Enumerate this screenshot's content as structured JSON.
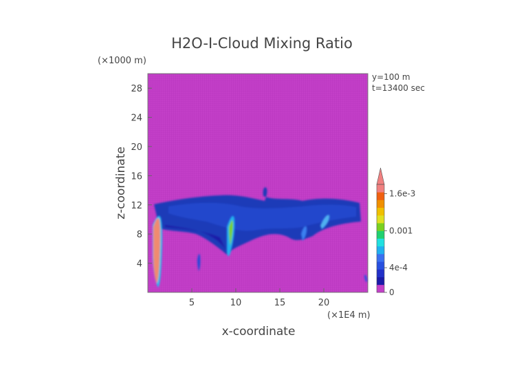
{
  "chart_data": {
    "type": "heatmap",
    "title": "H2O-I-Cloud Mixing Ratio",
    "xlabel": "x-coordinate",
    "ylabel": "z-coordinate",
    "x_unit": "(×1E4 m)",
    "y_unit": "(×1000 m)",
    "xlim": [
      0,
      25
    ],
    "ylim": [
      0,
      30
    ],
    "x_ticks": [
      5,
      10,
      15,
      20
    ],
    "y_ticks": [
      4,
      8,
      12,
      16,
      20,
      24,
      28
    ],
    "annotations": [
      "y=100 m",
      "t=13400 sec"
    ],
    "colorbar": {
      "tick_values": [
        0,
        0.0004,
        0.001,
        0.0016
      ],
      "tick_labels": [
        "0",
        "4e-4",
        "0.001",
        "1.6e-3"
      ],
      "colors": [
        "#c33fc8",
        "#1a1aa8",
        "#2230c8",
        "#2850e0",
        "#3a70f0",
        "#20b0f0",
        "#20e0e0",
        "#20d070",
        "#7ad020",
        "#e0e020",
        "#f0c000",
        "#f09000",
        "#f06010",
        "#f08080"
      ],
      "extend_max": true
    },
    "background_value": 0,
    "regions": [
      {
        "name": "upper-anvil-cloud",
        "x_range": [
          0.5,
          24.5
        ],
        "z_range": [
          7.5,
          13
        ],
        "level": "1e-4 to 2e-4"
      },
      {
        "name": "core-left",
        "x_range": [
          0.4,
          1.6
        ],
        "z_range": [
          0.5,
          11
        ],
        "level": "1.6e-3+"
      },
      {
        "name": "core-middle",
        "x_range": [
          8.5,
          10
        ],
        "z_range": [
          5,
          11
        ],
        "level": "6e-4 to 1e-3"
      },
      {
        "name": "core-right",
        "x_range": [
          17.5,
          21
        ],
        "z_range": [
          7,
          11
        ],
        "level": "4e-4 to 6e-4"
      },
      {
        "name": "small-column",
        "x_range": [
          5.4,
          5.7
        ],
        "z_range": [
          3,
          5.5
        ],
        "level": "2e-4 to 4e-4"
      }
    ]
  }
}
